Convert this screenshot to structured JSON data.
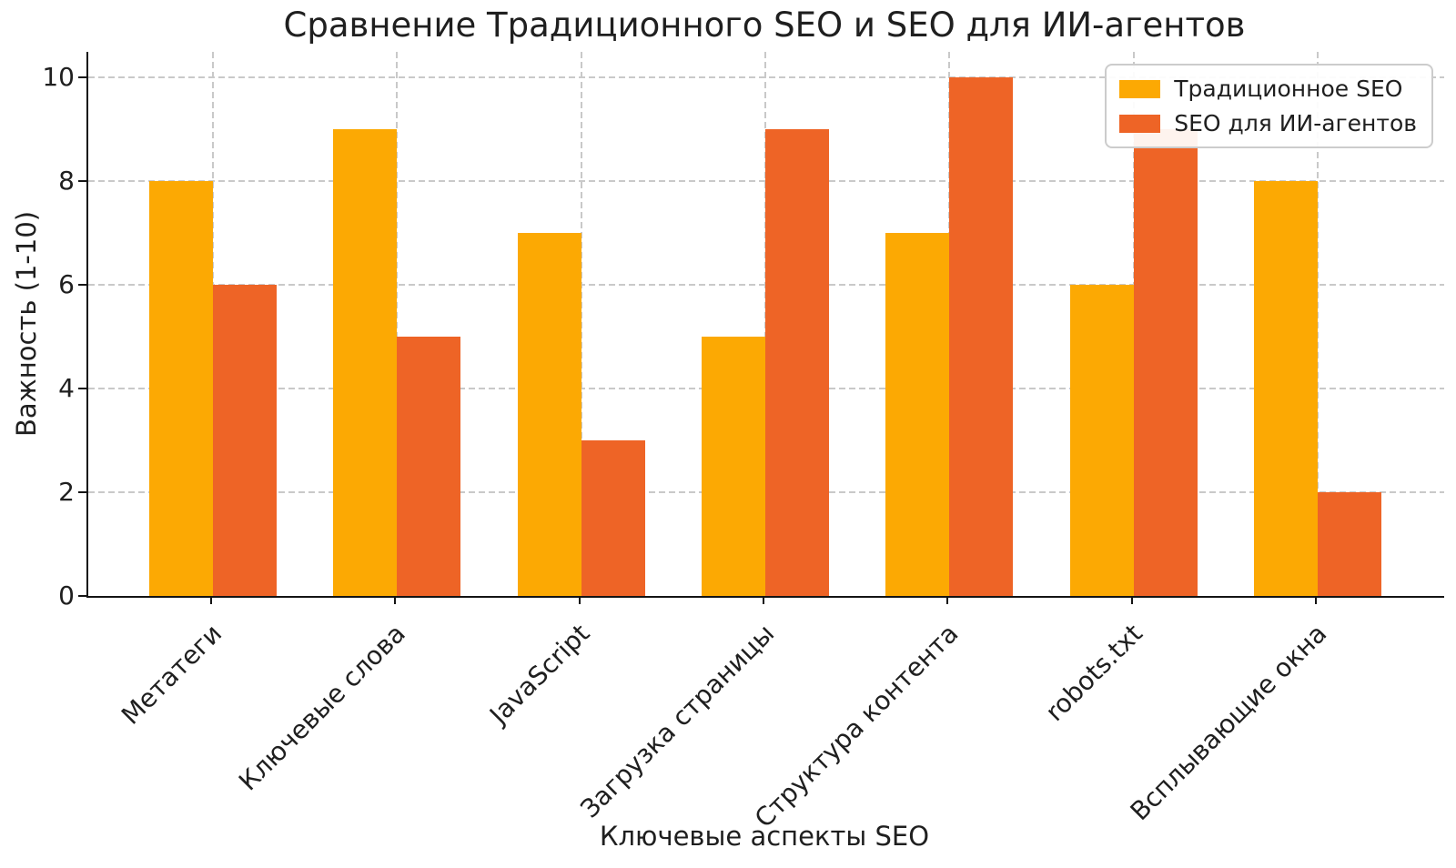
{
  "chart_data": {
    "type": "bar",
    "title": "Сравнение Традиционного SEO и SEO для ИИ-агентов",
    "xlabel": "Ключевые аспекты SEO",
    "ylabel": "Важность (1-10)",
    "categories": [
      "Метатеги",
      "Ключевые слова",
      "JavaScript",
      "Загрузка страницы",
      "Структура контента",
      "robots.txt",
      "Всплывающие окна"
    ],
    "series": [
      {
        "name": "Традиционное SEO",
        "color": "#FCA903",
        "values": [
          8,
          9,
          7,
          5,
          7,
          6,
          8
        ]
      },
      {
        "name": "SEO для ИИ-агентов",
        "color": "#EE6426",
        "values": [
          6,
          5,
          3,
          9,
          10,
          9,
          2
        ]
      }
    ],
    "yticks": [
      0,
      2,
      4,
      6,
      8,
      10
    ],
    "ylim": [
      0,
      10.5
    ],
    "grid": "dashed-both-axes",
    "grid_color": "#C9C9C9",
    "axis_color": "#141414",
    "legend_position": "upper-right"
  }
}
